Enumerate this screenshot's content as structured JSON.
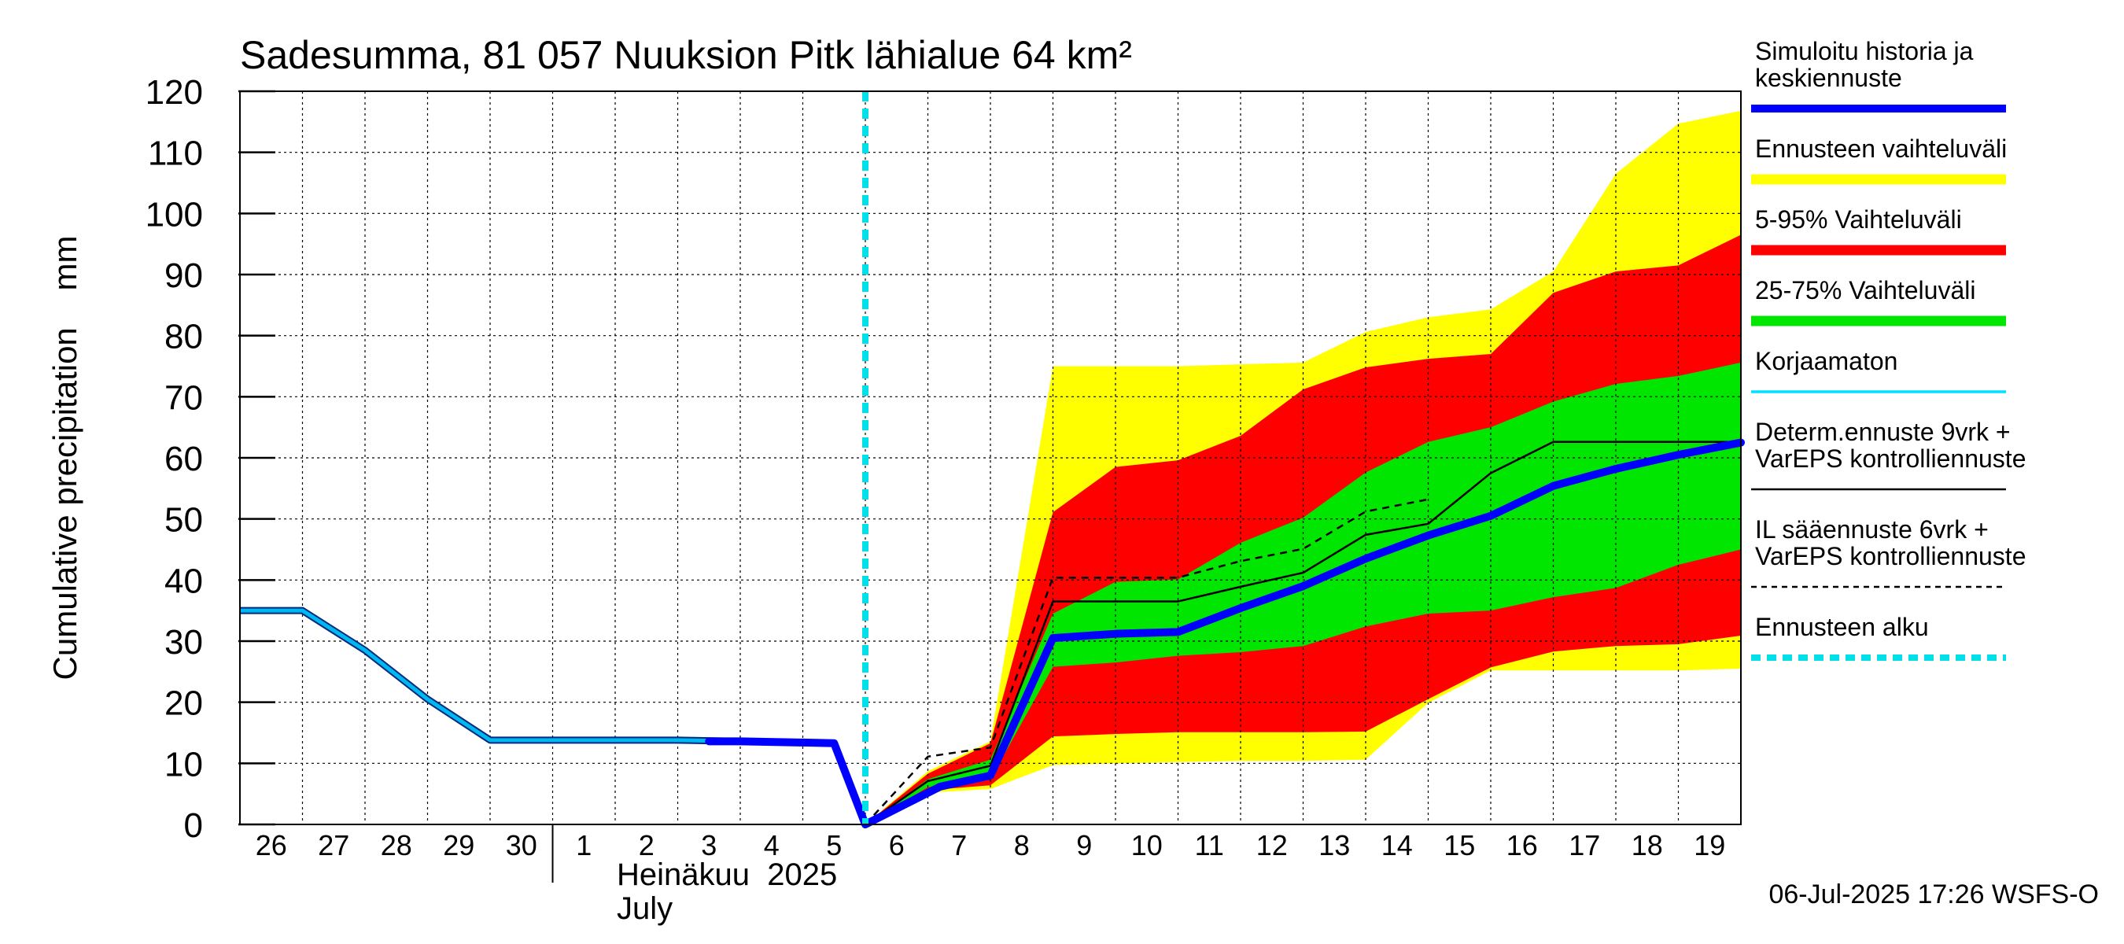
{
  "chart_data": {
    "type": "area",
    "title": "Sadesumma, 81 057 Nuuksion Pitk lähialue 64 km²",
    "ylabel": "Cumulative precipitation    mm",
    "ylim": [
      0,
      120
    ],
    "yticks": [
      0,
      10,
      20,
      30,
      40,
      50,
      60,
      70,
      80,
      90,
      100,
      110,
      120
    ],
    "x_start": "2025-06-26",
    "x_end": "2025-07-20",
    "xtick_labels": [
      "26",
      "27",
      "28",
      "29",
      "30",
      "1",
      "2",
      "3",
      "4",
      "5",
      "6",
      "7",
      "8",
      "9",
      "10",
      "11",
      "12",
      "13",
      "14",
      "15",
      "16",
      "17",
      "18",
      "19"
    ],
    "month_label_fi": "Heinäkuu  2025",
    "month_label_en": "July",
    "forecast_start": "2025-07-06",
    "footer": "06-Jul-2025 17:26 WSFS-O",
    "grid": true,
    "legend_position": "right",
    "colors": {
      "history": "#00b8f0",
      "mean": "#0000ff",
      "range": "#ffff00",
      "p5_95": "#ff0000",
      "p25_75": "#00e600",
      "uncorrected": "#00e0ff",
      "deterministic": "#000000",
      "forecast_start": "#00e0e8"
    },
    "legend": [
      {
        "key": "mean",
        "label": [
          "Simuloitu historia ja",
          "keskiennuste"
        ],
        "style": "thick"
      },
      {
        "key": "range",
        "label": [
          "Ennusteen vaihteluväli"
        ],
        "style": "band"
      },
      {
        "key": "p5_95",
        "label": [
          "5-95% Vaihteluväli"
        ],
        "style": "band"
      },
      {
        "key": "p25_75",
        "label": [
          "25-75% Vaihteluväli"
        ],
        "style": "band"
      },
      {
        "key": "uncorrected",
        "label": [
          "Korjaamaton"
        ],
        "style": "thin"
      },
      {
        "key": "deterministic",
        "label": [
          "Determ.ennuste 9vrk +",
          "VarEPS kontrolliennuste"
        ],
        "style": "black"
      },
      {
        "key": "il",
        "label": [
          "IL sääennuste 6vrk  +",
          "  VarEPS kontrolliennuste"
        ],
        "style": "dashed"
      },
      {
        "key": "forecast_start",
        "label": [
          "Ennusteen alku"
        ],
        "style": "cyan-dashed"
      }
    ],
    "series": [
      {
        "key": "history",
        "x": [
          0,
          1,
          2,
          3,
          4,
          5,
          6,
          7,
          8,
          9.5,
          10
        ],
        "y": [
          35,
          35,
          28.5,
          20.5,
          13.8,
          13.8,
          13.8,
          13.8,
          13.6,
          13.3,
          0
        ]
      },
      {
        "key": "mean",
        "x": [
          7.5,
          8,
          9,
          9.5,
          10,
          11.2,
          12,
          13,
          14,
          15,
          16,
          17,
          18,
          19,
          20,
          21,
          22,
          23,
          24
        ],
        "y": [
          13.6,
          13.6,
          13.4,
          13.3,
          0,
          6.2,
          8,
          30.5,
          31.2,
          31.5,
          35.4,
          39,
          43.5,
          47.3,
          50.5,
          55.4,
          58.2,
          60.5,
          62.5
        ]
      },
      {
        "key": "deterministic",
        "x": [
          10,
          11,
          12,
          13,
          14,
          15,
          16,
          17,
          18,
          19,
          20,
          21,
          22,
          23,
          24
        ],
        "y": [
          0,
          7.1,
          9.6,
          36.5,
          36.5,
          36.5,
          38.9,
          41.2,
          47.4,
          49.2,
          57.5,
          62.6,
          62.6,
          62.6,
          62.6
        ]
      },
      {
        "key": "il",
        "x": [
          10,
          11,
          12,
          13,
          14,
          15,
          16,
          17,
          18,
          19
        ],
        "y": [
          0,
          11.1,
          12.6,
          40.4,
          40.4,
          40.4,
          43.1,
          45.1,
          51.2,
          53.2
        ]
      }
    ],
    "bands": [
      {
        "key": "range",
        "x": [
          10,
          11,
          12,
          13,
          14,
          15,
          16,
          17,
          18,
          19,
          20,
          21,
          22,
          23,
          24
        ],
        "lower": [
          0,
          5.2,
          5.8,
          9.7,
          10,
          10.2,
          10.4,
          10.4,
          10.6,
          19.9,
          25.2,
          25.2,
          25.2,
          25.2,
          25.5
        ],
        "upper": [
          0,
          8.7,
          13.6,
          75,
          75,
          75,
          75.3,
          75.6,
          80.6,
          83,
          84.3,
          90.5,
          106.5,
          114.7,
          116.8
        ]
      },
      {
        "key": "p5_95",
        "x": [
          10,
          11,
          12,
          13,
          14,
          15,
          16,
          17,
          18,
          19,
          20,
          21,
          22,
          23,
          24
        ],
        "lower": [
          0,
          5.6,
          6.4,
          14.4,
          14.8,
          15.1,
          15.1,
          15.1,
          15.2,
          20.5,
          25.7,
          28.3,
          29.2,
          29.5,
          30.9
        ],
        "upper": [
          0,
          8.3,
          13.3,
          51.1,
          58.5,
          59.6,
          63.6,
          71.2,
          74.8,
          76.2,
          77,
          87,
          90.5,
          91.5,
          96.5
        ]
      },
      {
        "key": "p25_75",
        "x": [
          10,
          11,
          12,
          13,
          14,
          15,
          16,
          17,
          18,
          19,
          20,
          21,
          22,
          23,
          24
        ],
        "lower": [
          0,
          6.1,
          7.4,
          25.8,
          26.5,
          27.6,
          28.2,
          29.2,
          32.4,
          34.5,
          35,
          37.2,
          38.7,
          42.5,
          45
        ],
        "upper": [
          0,
          7.4,
          10.6,
          34.5,
          39.7,
          40.1,
          46.1,
          50.2,
          57.6,
          62.6,
          65,
          69.2,
          72.1,
          73.4,
          75.6
        ]
      }
    ]
  }
}
